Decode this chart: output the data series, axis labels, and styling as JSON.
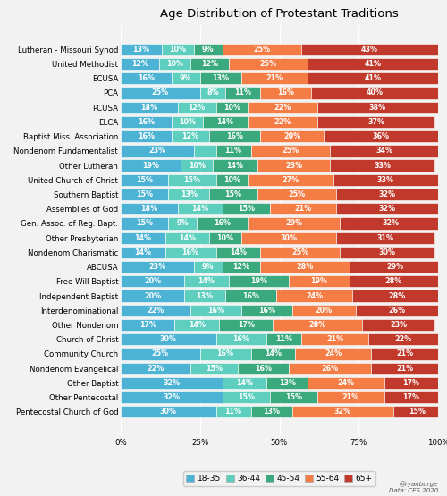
{
  "title": "Age Distribution of Protestant Traditions",
  "categories": [
    "Lutheran - Missouri Synod",
    "United Methodist",
    "ECUSA",
    "PCA",
    "PCUSA",
    "ELCA",
    "Baptist Miss. Association",
    "Nondenom Fundamentalist",
    "Other Lutheran",
    "United Church of Christ",
    "Southern Baptist",
    "Assemblies of God",
    "Gen. Assoc. of Reg. Bapt.",
    "Other Presbyterian",
    "Nondenom Charismatic",
    "ABCUSA",
    "Free Will Baptist",
    "Independent Baptist",
    "Interdenominational",
    "Other Nondenom",
    "Church of Christ",
    "Community Church",
    "Nondenom Evangelical",
    "Other Baptist",
    "Other Pentecostal",
    "Pentecostal Church of God"
  ],
  "data": [
    [
      13,
      10,
      9,
      25,
      43
    ],
    [
      12,
      10,
      12,
      25,
      41
    ],
    [
      16,
      9,
      13,
      21,
      41
    ],
    [
      25,
      8,
      11,
      16,
      40
    ],
    [
      18,
      12,
      10,
      22,
      38
    ],
    [
      16,
      10,
      14,
      22,
      37
    ],
    [
      16,
      12,
      16,
      20,
      36
    ],
    [
      23,
      7,
      11,
      25,
      34
    ],
    [
      19,
      10,
      14,
      23,
      33
    ],
    [
      15,
      15,
      10,
      27,
      33
    ],
    [
      15,
      13,
      15,
      25,
      32
    ],
    [
      18,
      14,
      15,
      21,
      32
    ],
    [
      15,
      9,
      16,
      29,
      32
    ],
    [
      14,
      14,
      10,
      30,
      31
    ],
    [
      14,
      16,
      14,
      25,
      30
    ],
    [
      23,
      9,
      12,
      28,
      29
    ],
    [
      20,
      14,
      19,
      19,
      28
    ],
    [
      20,
      13,
      16,
      24,
      28
    ],
    [
      22,
      16,
      16,
      20,
      26
    ],
    [
      17,
      14,
      17,
      28,
      23
    ],
    [
      30,
      16,
      11,
      21,
      22
    ],
    [
      25,
      16,
      14,
      24,
      21
    ],
    [
      22,
      15,
      16,
      26,
      21
    ],
    [
      32,
      14,
      13,
      24,
      17
    ],
    [
      32,
      15,
      15,
      21,
      17
    ],
    [
      30,
      11,
      13,
      32,
      15
    ]
  ],
  "colors": [
    "#4db3d4",
    "#5ecfbe",
    "#3aaa7e",
    "#f47d45",
    "#c0392b"
  ],
  "legend_labels": [
    "18-35",
    "36-44",
    "45-54",
    "55-64",
    "65+"
  ],
  "background_color": "#f2f2f2",
  "bar_height": 0.82,
  "text_threshold": 8,
  "credit": "@ryanburge\nData: CES 2020",
  "title_fontsize": 9.5,
  "tick_fontsize": 6.2,
  "bar_fontsize": 5.8,
  "legend_fontsize": 6.5
}
